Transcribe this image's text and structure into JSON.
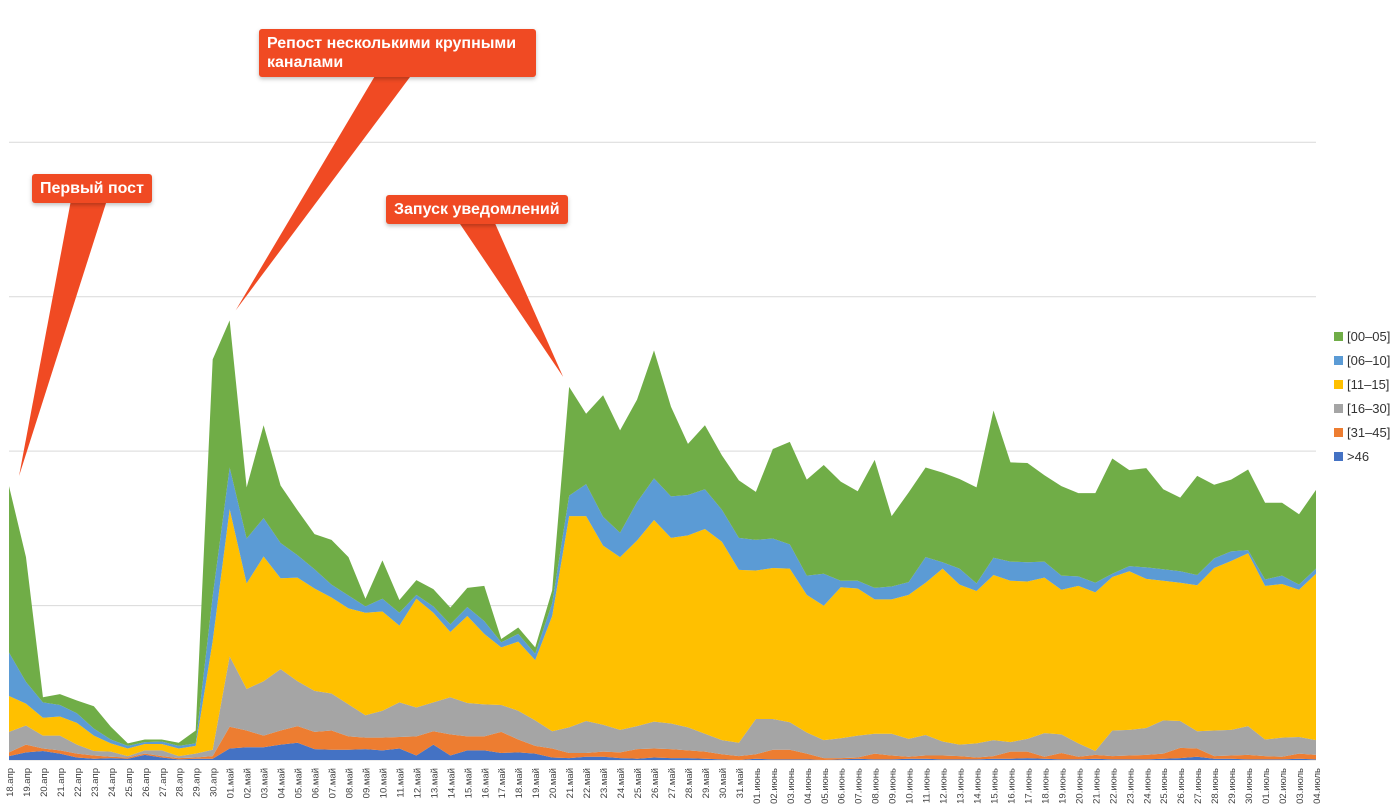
{
  "chart_data": {
    "type": "area",
    "stacked": true,
    "grid": true,
    "legend_position": "right",
    "categories": [
      "18.апр",
      "19.апр",
      "20.апр",
      "21.апр",
      "22.апр",
      "23.апр",
      "24.апр",
      "25.апр",
      "26.апр",
      "27.апр",
      "28.апр",
      "29.апр",
      "30.апр",
      "01.май",
      "02.май",
      "03.май",
      "04.май",
      "05.май",
      "06.май",
      "07.май",
      "08.май",
      "09.май",
      "10.май",
      "11.май",
      "12.май",
      "13.май",
      "14.май",
      "15.май",
      "16.май",
      "17.май",
      "18.май",
      "19.май",
      "20.май",
      "21.май",
      "22.май",
      "23.май",
      "24.май",
      "25.май",
      "26.май",
      "27.май",
      "28.май",
      "29.май",
      "30.май",
      "31.май",
      "01.июнь",
      "02.июнь",
      "03.июнь",
      "04.июнь",
      "05.июнь",
      "06.июнь",
      "07.июнь",
      "08.июнь",
      "09.июнь",
      "10.июнь",
      "11.июнь",
      "12.июнь",
      "13.июнь",
      "14.июнь",
      "15.июнь",
      "16.июнь",
      "17.июнь",
      "18.июнь",
      "19.июнь",
      "20.июнь",
      "21.июнь",
      "22.июнь",
      "23.июнь",
      "24.июнь",
      "25.июнь",
      "26.июнь",
      "27.июнь",
      "28.июнь",
      "29.июнь",
      "30.июнь",
      "01.июль",
      "02.июль",
      "03.июль",
      "04.июль"
    ],
    "series": [
      {
        "name": ">46",
        "color": "#4472c4",
        "values": [
          6,
          12,
          14,
          10,
          4,
          2,
          3,
          2,
          8,
          4,
          1,
          2,
          2,
          18,
          20,
          20,
          24,
          27,
          17,
          16,
          16,
          17,
          15,
          18,
          7,
          24,
          7,
          15,
          15,
          11,
          12,
          10,
          4,
          3,
          5,
          5,
          3,
          2,
          4,
          3,
          3,
          2,
          1,
          0,
          2,
          1,
          1,
          1,
          0,
          1,
          2,
          1,
          1,
          2,
          2,
          1,
          1,
          1,
          2,
          2,
          3,
          2,
          1,
          1,
          2,
          1,
          1,
          1,
          2,
          3,
          5,
          2,
          2,
          1,
          1,
          1,
          2,
          1
        ]
      },
      {
        "name": "[31–45]",
        "color": "#ed7d31",
        "values": [
          6,
          12,
          4,
          5,
          6,
          5,
          2,
          2,
          2,
          2,
          2,
          2,
          4,
          34,
          26,
          18,
          22,
          26,
          27,
          30,
          21,
          18,
          20,
          18,
          30,
          21,
          33,
          22,
          22,
          33,
          20,
          12,
          14,
          8,
          6,
          8,
          9,
          15,
          14,
          14,
          12,
          11,
          8,
          6,
          7,
          15,
          15,
          9,
          3,
          2,
          2,
          9,
          6,
          3,
          5,
          6,
          5,
          3,
          4,
          11,
          10,
          3,
          10,
          4,
          6,
          5,
          6,
          7,
          8,
          16,
          13,
          4,
          5,
          7,
          5,
          4,
          8,
          7
        ]
      },
      {
        "name": "[16–30]",
        "color": "#a5a5a5",
        "values": [
          32,
          30,
          20,
          23,
          14,
          7,
          8,
          2,
          5,
          9,
          3,
          6,
          10,
          110,
          65,
          85,
          96,
          70,
          64,
          58,
          50,
          35,
          42,
          54,
          45,
          45,
          58,
          52,
          50,
          42,
          45,
          40,
          27,
          40,
          50,
          42,
          35,
          36,
          42,
          40,
          36,
          28,
          22,
          21,
          55,
          48,
          43,
          33,
          28,
          31,
          34,
          31,
          34,
          28,
          32,
          22,
          18,
          22,
          25,
          15,
          20,
          37,
          29,
          21,
          6,
          40,
          40,
          42,
          52,
          42,
          27,
          40,
          40,
          45,
          26,
          30,
          26,
          23
        ]
      },
      {
        "name": "[11–15]",
        "color": "#ffc000",
        "values": [
          56,
          34,
          28,
          30,
          34,
          24,
          13,
          12,
          10,
          10,
          12,
          12,
          170,
          230,
          165,
          195,
          142,
          162,
          160,
          150,
          150,
          160,
          155,
          120,
          170,
          140,
          102,
          136,
          110,
          90,
          108,
          94,
          180,
          330,
          320,
          280,
          270,
          290,
          315,
          290,
          300,
          320,
          310,
          270,
          232,
          236,
          240,
          215,
          210,
          236,
          230,
          210,
          210,
          225,
          238,
          270,
          250,
          238,
          258,
          252,
          246,
          243,
          226,
          246,
          248,
          240,
          248,
          233,
          218,
          216,
          228,
          254,
          264,
          270,
          240,
          240,
          230,
          260
        ]
      },
      {
        "name": "[06–10]",
        "color": "#5b9bd5",
        "values": [
          68,
          34,
          24,
          18,
          15,
          11,
          6,
          4,
          3,
          4,
          4,
          4,
          70,
          65,
          70,
          60,
          55,
          35,
          30,
          20,
          20,
          10,
          20,
          20,
          6,
          10,
          12,
          14,
          20,
          8,
          12,
          10,
          20,
          32,
          50,
          45,
          38,
          60,
          65,
          65,
          63,
          62,
          50,
          50,
          48,
          46,
          38,
          30,
          50,
          10,
          12,
          18,
          20,
          20,
          40,
          10,
          25,
          12,
          27,
          30,
          30,
          25,
          22,
          15,
          15,
          5,
          8,
          18,
          18,
          18,
          16,
          15,
          15,
          5,
          10,
          13,
          8,
          8
        ]
      },
      {
        "name": "[00–05]",
        "color": "#70ad47",
        "values": [
          260,
          195,
          8,
          17,
          20,
          35,
          20,
          4,
          4,
          3,
          5,
          20,
          370,
          230,
          80,
          145,
          90,
          70,
          55,
          70,
          60,
          12,
          60,
          20,
          23,
          27,
          26,
          30,
          55,
          5,
          10,
          10,
          20,
          170,
          110,
          190,
          160,
          160,
          200,
          140,
          80,
          100,
          85,
          90,
          75,
          140,
          160,
          150,
          170,
          155,
          140,
          200,
          110,
          140,
          140,
          140,
          140,
          150,
          230,
          155,
          155,
          135,
          140,
          130,
          140,
          180,
          150,
          155,
          125,
          115,
          155,
          115,
          112,
          126,
          120,
          114,
          110,
          123
        ]
      }
    ],
    "annotations": [
      {
        "text": "Первый пост",
        "category": "18.апр"
      },
      {
        "text": "Репост несколькими крупными каналами",
        "category": "01.май"
      },
      {
        "text": "Запуск уведомлений",
        "category": "21.май"
      }
    ]
  }
}
